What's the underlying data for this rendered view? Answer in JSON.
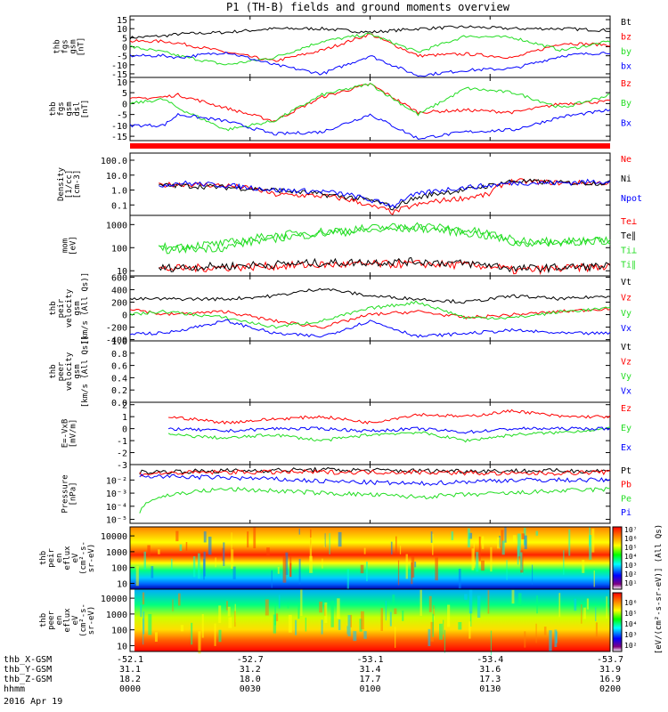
{
  "title": "P1 (TH-B) fields and ground moments overview",
  "colors": {
    "black": "#000000",
    "red": "#ff0000",
    "green": "#22dd22",
    "blue": "#0000ff",
    "bar": "#ff0000"
  },
  "chart_data": [
    {
      "type": "line",
      "panel": "fgs_gsm_nt",
      "ylabel": [
        "thb",
        "fgs",
        "gsm",
        "[nT]"
      ],
      "ylim": [
        -17,
        17
      ],
      "yticks": [
        "15",
        "10",
        "5",
        "0",
        "-5",
        "-10",
        "-15"
      ],
      "ytick_values": [
        15,
        10,
        5,
        0,
        -5,
        -10,
        -15
      ],
      "legend": [
        "Bt",
        "bz",
        "by",
        "bx"
      ],
      "series": [
        {
          "name": "Bt",
          "x": [
            0,
            0.07,
            0.1,
            0.2,
            0.3,
            0.4,
            0.5,
            0.6,
            0.7,
            0.8,
            0.9,
            1
          ],
          "values": [
            5,
            6,
            7,
            8,
            10,
            10,
            8,
            10,
            11,
            10,
            10,
            9
          ]
        },
        {
          "name": "bz",
          "x": [
            0,
            0.07,
            0.1,
            0.2,
            0.3,
            0.4,
            0.5,
            0.6,
            0.7,
            0.8,
            0.9,
            1
          ],
          "values": [
            3,
            3,
            2,
            -3,
            -8,
            -2,
            7,
            -5,
            -4,
            -6,
            2,
            1
          ]
        },
        {
          "name": "by",
          "x": [
            0,
            0.07,
            0.1,
            0.2,
            0.3,
            0.4,
            0.5,
            0.6,
            0.7,
            0.8,
            0.9,
            1
          ],
          "values": [
            0,
            -3,
            -5,
            -10,
            -6,
            3,
            7,
            -3,
            6,
            5,
            -2,
            3
          ]
        },
        {
          "name": "bx",
          "x": [
            0,
            0.07,
            0.1,
            0.2,
            0.3,
            0.4,
            0.5,
            0.6,
            0.7,
            0.8,
            0.9,
            1
          ],
          "values": [
            -5,
            -5,
            -6,
            -3,
            -10,
            -15,
            -5,
            -16,
            -13,
            -12,
            -5,
            -3
          ]
        }
      ]
    },
    {
      "type": "line",
      "panel": "fgs_gsm_dsl",
      "ylabel": [
        "thb",
        "fgs",
        "gsm",
        "dsl",
        "[nT]"
      ],
      "ylim": [
        -17,
        12
      ],
      "yticks": [
        "10",
        "5",
        "0",
        "-5",
        "-10",
        "-15"
      ],
      "ytick_values": [
        10,
        5,
        0,
        -5,
        -10,
        -15
      ],
      "legend": [
        "Bz",
        "By",
        "Bx"
      ],
      "series": [
        {
          "name": "Bz",
          "x": [
            0,
            0.07,
            0.1,
            0.2,
            0.3,
            0.4,
            0.5,
            0.6,
            0.7,
            0.8,
            0.9,
            1
          ],
          "values": [
            2,
            3,
            4,
            -2,
            -8,
            3,
            9,
            -4,
            -3,
            -4,
            0,
            1
          ]
        },
        {
          "name": "By",
          "x": [
            0,
            0.07,
            0.1,
            0.2,
            0.3,
            0.4,
            0.5,
            0.6,
            0.7,
            0.8,
            0.9,
            1
          ],
          "values": [
            0,
            2,
            -2,
            -12,
            -8,
            4,
            9,
            -5,
            7,
            5,
            -2,
            4
          ]
        },
        {
          "name": "Bx",
          "x": [
            0,
            0.07,
            0.1,
            0.2,
            0.3,
            0.4,
            0.5,
            0.6,
            0.7,
            0.8,
            0.9,
            1
          ],
          "values": [
            -10,
            -10,
            -5,
            -8,
            -14,
            -13,
            -5,
            -16,
            -13,
            -12,
            -6,
            -3
          ]
        }
      ]
    },
    {
      "type": "line",
      "panel": "density",
      "log": true,
      "ylabel": [
        "Density",
        "[1/cc]",
        "[cm-3]"
      ],
      "ylim": [
        0.02,
        300
      ],
      "yticks": [
        "100.0",
        "10.0",
        "1.0",
        "0.1"
      ],
      "ytick_values": [
        100,
        10,
        1,
        0.1
      ],
      "legend": [
        "Ne",
        "Ni",
        "Npot"
      ],
      "series": [
        {
          "name": "Ne",
          "x": [
            0.06,
            0.1,
            0.2,
            0.3,
            0.4,
            0.5,
            0.55,
            0.6,
            0.7,
            0.75,
            0.8,
            0.9,
            1
          ],
          "values": [
            2,
            2.5,
            2,
            0.5,
            0.4,
            0.08,
            0.03,
            0.1,
            0.3,
            0.5,
            4,
            3,
            3
          ]
        },
        {
          "name": "Ni",
          "x": [
            0.06,
            0.1,
            0.2,
            0.3,
            0.4,
            0.5,
            0.55,
            0.6,
            0.7,
            0.75,
            0.8,
            0.9,
            1
          ],
          "values": [
            2,
            2,
            1.5,
            1,
            0.5,
            0.2,
            0.05,
            0.3,
            1,
            2,
            4,
            3,
            3
          ]
        },
        {
          "name": "Npot",
          "x": [
            0.06,
            0.1,
            0.2,
            0.3,
            0.4,
            0.5,
            0.55,
            0.6,
            0.7,
            0.75,
            0.8,
            0.9,
            1
          ],
          "values": [
            2,
            3,
            2,
            1,
            0.8,
            0.2,
            0.08,
            0.5,
            1.5,
            2,
            3,
            3,
            4
          ]
        }
      ]
    },
    {
      "type": "line",
      "panel": "temperature",
      "log": true,
      "ylabel": [
        "mom",
        "[eV]"
      ],
      "ylim": [
        6,
        2500
      ],
      "yticks": [
        "1000",
        "100",
        "10"
      ],
      "ytick_values": [
        1000,
        100,
        10
      ],
      "legend": [
        "Te⊥",
        "Te∥",
        "Ti⊥",
        "Ti∥"
      ],
      "series": [
        {
          "name": "Te⊥",
          "x": [
            0.06,
            0.2,
            0.4,
            0.6,
            0.75,
            0.8,
            1
          ],
          "values": [
            12,
            14,
            18,
            20,
            16,
            10,
            15
          ]
        },
        {
          "name": "Te∥",
          "x": [
            0.06,
            0.2,
            0.4,
            0.6,
            0.75,
            0.8,
            1
          ],
          "values": [
            13,
            16,
            22,
            25,
            18,
            12,
            16
          ]
        },
        {
          "name": "Ti⊥",
          "x": [
            0.06,
            0.2,
            0.4,
            0.6,
            0.75,
            0.8,
            1
          ],
          "values": [
            80,
            100,
            400,
            700,
            300,
            150,
            200
          ]
        },
        {
          "name": "Ti∥",
          "x": [
            0.06,
            0.2,
            0.4,
            0.6,
            0.75,
            0.8,
            1
          ],
          "values": [
            100,
            150,
            500,
            900,
            400,
            200,
            200
          ]
        }
      ]
    },
    {
      "type": "line",
      "panel": "peir_velocity",
      "ylabel": [
        "thb",
        "peir",
        "velocity",
        "gsm",
        "[km/s (All Qs)]"
      ],
      "ylim": [
        -420,
        620
      ],
      "yticks": [
        "600",
        "400",
        "200",
        "0",
        "-200",
        "-400"
      ],
      "ytick_values": [
        600,
        400,
        200,
        0,
        -200,
        -400
      ],
      "legend": [
        "Vt",
        "Vz",
        "Vy",
        "Vx"
      ],
      "series": [
        {
          "name": "Vt",
          "x": [
            0,
            0.07,
            0.2,
            0.3,
            0.4,
            0.5,
            0.6,
            0.7,
            0.8,
            0.9,
            1
          ],
          "values": [
            250,
            250,
            250,
            300,
            420,
            300,
            250,
            200,
            300,
            250,
            300
          ]
        },
        {
          "name": "Vz",
          "x": [
            0,
            0.07,
            0.2,
            0.3,
            0.4,
            0.5,
            0.6,
            0.7,
            0.8,
            0.9,
            1
          ],
          "values": [
            100,
            0,
            50,
            -100,
            -200,
            0,
            50,
            -50,
            0,
            50,
            100
          ]
        },
        {
          "name": "Vy",
          "x": [
            0,
            0.07,
            0.2,
            0.3,
            0.4,
            0.5,
            0.6,
            0.7,
            0.8,
            0.9,
            1
          ],
          "values": [
            0,
            50,
            -50,
            -200,
            -100,
            100,
            200,
            -50,
            -50,
            50,
            100
          ]
        },
        {
          "name": "Vx",
          "x": [
            0,
            0.07,
            0.2,
            0.3,
            0.4,
            0.5,
            0.6,
            0.7,
            0.8,
            0.9,
            1
          ],
          "values": [
            -300,
            -300,
            -100,
            -300,
            -350,
            -100,
            -350,
            -300,
            -250,
            -300,
            -300
          ]
        }
      ]
    },
    {
      "type": "line",
      "panel": "peer_velocity",
      "ylabel": [
        "thb",
        "peer",
        "velocity",
        "gsm",
        "[km/s (All Qs)]"
      ],
      "ylim": [
        0,
        1
      ],
      "yticks": [
        "1.0",
        "0.8",
        "0.6",
        "0.4",
        "0.2",
        "0.0"
      ],
      "ytick_values": [
        1,
        0.8,
        0.6,
        0.4,
        0.2,
        0
      ],
      "legend": [
        "Vt",
        "Vz",
        "Vy",
        "Vx"
      ],
      "series": []
    },
    {
      "type": "line",
      "panel": "efield",
      "ylabel": [
        "E=-VxB",
        "[mV/m]"
      ],
      "ylim": [
        -3,
        2.2
      ],
      "yticks": [
        "2",
        "1",
        "0",
        "-1",
        "-2",
        "-3"
      ],
      "ytick_values": [
        2,
        1,
        0,
        -1,
        -2,
        -3
      ],
      "legend": [
        "Ez",
        "Ey",
        "Ex"
      ],
      "series": [
        {
          "name": "Ez",
          "x": [
            0.08,
            0.2,
            0.3,
            0.4,
            0.5,
            0.6,
            0.7,
            0.8,
            0.9,
            1
          ],
          "values": [
            1,
            0.5,
            0.8,
            1,
            0.5,
            1.2,
            1,
            1.5,
            1,
            1
          ]
        },
        {
          "name": "Ey",
          "x": [
            0.08,
            0.2,
            0.3,
            0.4,
            0.5,
            0.6,
            0.7,
            0.8,
            0.9,
            1
          ],
          "values": [
            -0.5,
            -0.8,
            -0.5,
            -1,
            -0.5,
            -0.3,
            -1,
            -0.5,
            -0.3,
            0
          ]
        },
        {
          "name": "Ex",
          "x": [
            0.08,
            0.2,
            0.3,
            0.4,
            0.5,
            0.6,
            0.7,
            0.8,
            0.9,
            1
          ],
          "values": [
            0,
            -0.2,
            0,
            0,
            -0.2,
            0,
            -0.3,
            0,
            0,
            0
          ]
        }
      ]
    },
    {
      "type": "line",
      "panel": "pressure",
      "log": true,
      "ylabel": [
        "Pressure",
        "[nPa]"
      ],
      "ylim": [
        5e-06,
        0.15
      ],
      "yticks": [
        "10⁻²",
        "10⁻³",
        "10⁻⁴",
        "10⁻⁵"
      ],
      "ytick_values": [
        0.01,
        0.001,
        0.0001,
        1e-05
      ],
      "legend": [
        "Pt",
        "Pb",
        "Pe",
        "Pi"
      ],
      "series": [
        {
          "name": "Pt",
          "x": [
            0.02,
            0.2,
            0.4,
            0.6,
            0.8,
            1
          ],
          "values": [
            0.04,
            0.05,
            0.06,
            0.05,
            0.05,
            0.05
          ]
        },
        {
          "name": "Pb",
          "x": [
            0.02,
            0.2,
            0.4,
            0.6,
            0.8,
            1
          ],
          "values": [
            0.03,
            0.04,
            0.04,
            0.04,
            0.03,
            0.04
          ]
        },
        {
          "name": "Pe",
          "x": [
            0.02,
            0.2,
            0.4,
            0.6,
            0.8,
            1
          ],
          "values": [
            3e-05,
            0.002,
            0.001,
            0.0005,
            0.001,
            0.002
          ]
        },
        {
          "name": "Pi",
          "x": [
            0.02,
            0.2,
            0.4,
            0.6,
            0.8,
            1
          ],
          "values": [
            0.02,
            0.015,
            0.008,
            0.005,
            0.01,
            0.01
          ]
        }
      ]
    },
    {
      "type": "heatmap",
      "panel": "peir_en_eflux",
      "ylabel": [
        "thb",
        "peir",
        "en",
        "eflux",
        "eV",
        "(cm²-s-",
        "sr-eV)"
      ],
      "yticks": [
        "10000",
        "1000",
        "100",
        "10"
      ],
      "ytick_values": [
        10000,
        1000,
        100,
        10
      ],
      "log": true
    },
    {
      "type": "heatmap",
      "panel": "peer_en_eflux",
      "ylabel": [
        "thb",
        "peer",
        "en",
        "eflux",
        "eV",
        "(cm²-s-",
        "sr-eV)"
      ],
      "yticks": [
        "10000",
        "1000",
        "100",
        "10"
      ],
      "ytick_values": [
        10000,
        1000,
        100,
        10
      ],
      "log": true
    }
  ],
  "colorbar": {
    "label": "[eV/(cm²-s-sr-eV)] (All Qs)",
    "ticks_top": [
      "10⁷",
      "10⁶",
      "10⁵",
      "10⁴",
      "10³",
      "10²",
      "10¹"
    ],
    "ticks_bottom": [
      "10⁶",
      "10⁵",
      "10⁴",
      "10³",
      "10²"
    ]
  },
  "xaxis": {
    "rows": [
      {
        "label": "thb_X-GSM",
        "values": [
          "-52.1",
          "-52.7",
          "-53.1",
          "-53.4",
          "-53.7"
        ]
      },
      {
        "label": "thb_Y-GSM",
        "values": [
          "31.1",
          "31.2",
          "31.4",
          "31.6",
          "31.9"
        ]
      },
      {
        "label": "thb_Z-GSM",
        "values": [
          "18.2",
          "18.0",
          "17.7",
          "17.3",
          "16.9"
        ]
      },
      {
        "label": "hhmm",
        "values": [
          "0000",
          "0030",
          "0100",
          "0130",
          "0200"
        ]
      }
    ],
    "date": "2016 Apr 19"
  }
}
